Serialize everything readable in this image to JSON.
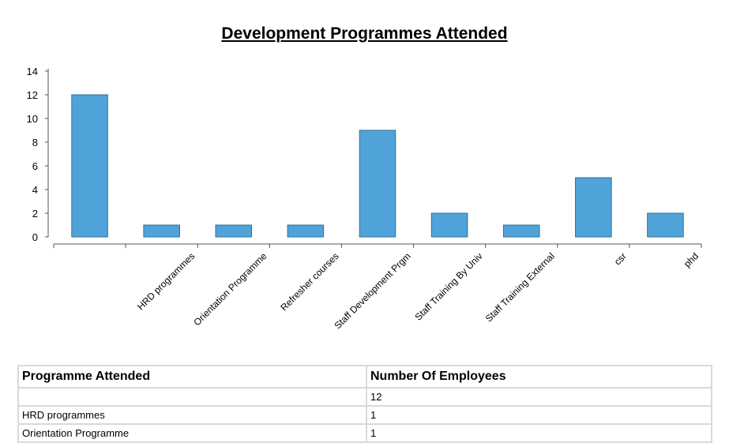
{
  "chart_data": {
    "type": "bar",
    "title": "Development Programmes Attended",
    "categories": [
      "",
      "HRD programmes",
      "Orientation Programme",
      "Refresher courses",
      "Staff Development Prgm",
      "Staff Training By Univ",
      "Staff Training External",
      "csr",
      "phd"
    ],
    "values": [
      12,
      1,
      1,
      1,
      9,
      2,
      1,
      5,
      2
    ],
    "ylim": [
      0,
      14
    ],
    "yticks": [
      0,
      2,
      4,
      6,
      8,
      10,
      12,
      14
    ],
    "grid": false,
    "bar_color": "#4fa3d9",
    "bar_stroke": "#2f6f9a"
  },
  "table": {
    "headers": [
      "Programme Attended",
      "Number Of Employees"
    ],
    "rows": [
      [
        "",
        "12"
      ],
      [
        "HRD programmes",
        "1"
      ],
      [
        "Orientation Programme",
        "1"
      ]
    ]
  }
}
